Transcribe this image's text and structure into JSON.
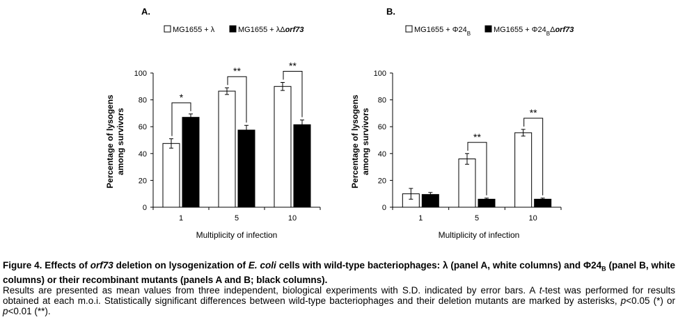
{
  "chart_data": [
    {
      "type": "bar",
      "panel": "A.",
      "categories": [
        "1",
        "5",
        "10"
      ],
      "series": [
        {
          "name": "MG1655 + λ",
          "name_parts": {
            "base": "MG1655 + λ",
            "italic": ""
          },
          "values": [
            47.5,
            86.5,
            90.0
          ],
          "errors": [
            3.5,
            2.5,
            3.0
          ],
          "fill": "#ffffff"
        },
        {
          "name": "MG1655 + λΔorf73",
          "name_parts": {
            "base": "MG1655 + λΔ",
            "italic": "orf73"
          },
          "values": [
            67.0,
            57.5,
            61.5
          ],
          "errors": [
            2.5,
            3.5,
            3.5
          ],
          "fill": "#000000"
        }
      ],
      "significance": [
        {
          "category": "1",
          "label": "*"
        },
        {
          "category": "5",
          "label": "**"
        },
        {
          "category": "10",
          "label": "**"
        }
      ],
      "xlabel": "Multiplicity of infection",
      "ylabel_lines": [
        "Percentage of lysogens",
        "among survivors"
      ],
      "ylim": [
        0,
        100
      ],
      "yticks": [
        "0",
        "20",
        "40",
        "60",
        "80",
        "100"
      ],
      "legend_position": "top"
    },
    {
      "type": "bar",
      "panel": "B.",
      "categories": [
        "1",
        "5",
        "10"
      ],
      "series": [
        {
          "name": "MG1655 + Φ24B",
          "name_parts": {
            "base": "MG1655 + Φ24",
            "sub": "B",
            "italic": ""
          },
          "values": [
            10.0,
            36.0,
            55.5
          ],
          "errors": [
            4.0,
            4.0,
            2.5
          ],
          "fill": "#ffffff"
        },
        {
          "name": "MG1655 + Φ24BΔorf73",
          "name_parts": {
            "base": "MG1655 + Φ24",
            "sub": "B",
            "mid": "Δ",
            "italic": "orf73"
          },
          "values": [
            9.5,
            6.0,
            6.0
          ],
          "errors": [
            1.5,
            0.8,
            0.8
          ],
          "fill": "#000000"
        }
      ],
      "significance": [
        {
          "category": "5",
          "label": "**"
        },
        {
          "category": "10",
          "label": "**"
        }
      ],
      "xlabel": "Multiplicity of infection",
      "ylabel_lines": [
        "Percentage of lysogens",
        "among survivors"
      ],
      "ylim": [
        0,
        100
      ],
      "yticks": [
        "0",
        "20",
        "40",
        "60",
        "80",
        "100"
      ],
      "legend_position": "top"
    }
  ],
  "caption": {
    "title_runs": [
      {
        "t": "Figure 4. Effects of "
      },
      {
        "t": "orf73",
        "i": true
      },
      {
        "t": " deletion on lysogenization of "
      },
      {
        "t": "E. coli",
        "i": true
      },
      {
        "t": " cells with wild-type bacteriophages: λ (panel A, white columns) and Φ24"
      },
      {
        "t": "B",
        "sub": true
      },
      {
        "t": " (panel B, white columns) or their recombinant mutants (panels A and B; black columns)."
      }
    ],
    "body_runs": [
      {
        "t": "Results are presented as mean values from three independent, biological experiments with S.D. indicated by error bars. A "
      },
      {
        "t": "t",
        "i": true
      },
      {
        "t": "-test was performed for results obtained at each m.o.i. Statistically significant differences between wild-type bacteriophages and their deletion mutants are marked by asterisks, "
      },
      {
        "t": "p",
        "i": true
      },
      {
        "t": "<0.05 (*) or "
      },
      {
        "t": "p",
        "i": true
      },
      {
        "t": "<0.01 (**)."
      }
    ]
  }
}
